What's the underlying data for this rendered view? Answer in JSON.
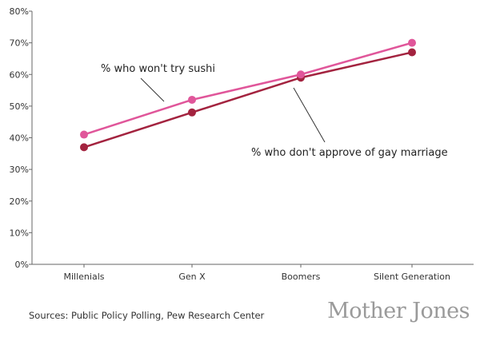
{
  "chart_data": {
    "type": "line",
    "categories": [
      "Millenials",
      "Gen X",
      "Boomers",
      "Silent Generation"
    ],
    "ylim": [
      0,
      80
    ],
    "yticks": [
      "0%",
      "10%",
      "20%",
      "30%",
      "40%",
      "50%",
      "60%",
      "70%",
      "80%"
    ],
    "grid": false,
    "series": [
      {
        "name": "% who won't try sushi",
        "values": [
          41,
          52,
          60,
          70
        ],
        "color": "#e0569a"
      },
      {
        "name": "% who don't approve of gay marriage",
        "values": [
          37,
          48,
          59,
          67
        ],
        "color": "#a3233f"
      }
    ]
  },
  "footer": {
    "source": "Sources: Public Policy Polling, Pew Research Center",
    "brand": "Mother Jones"
  }
}
